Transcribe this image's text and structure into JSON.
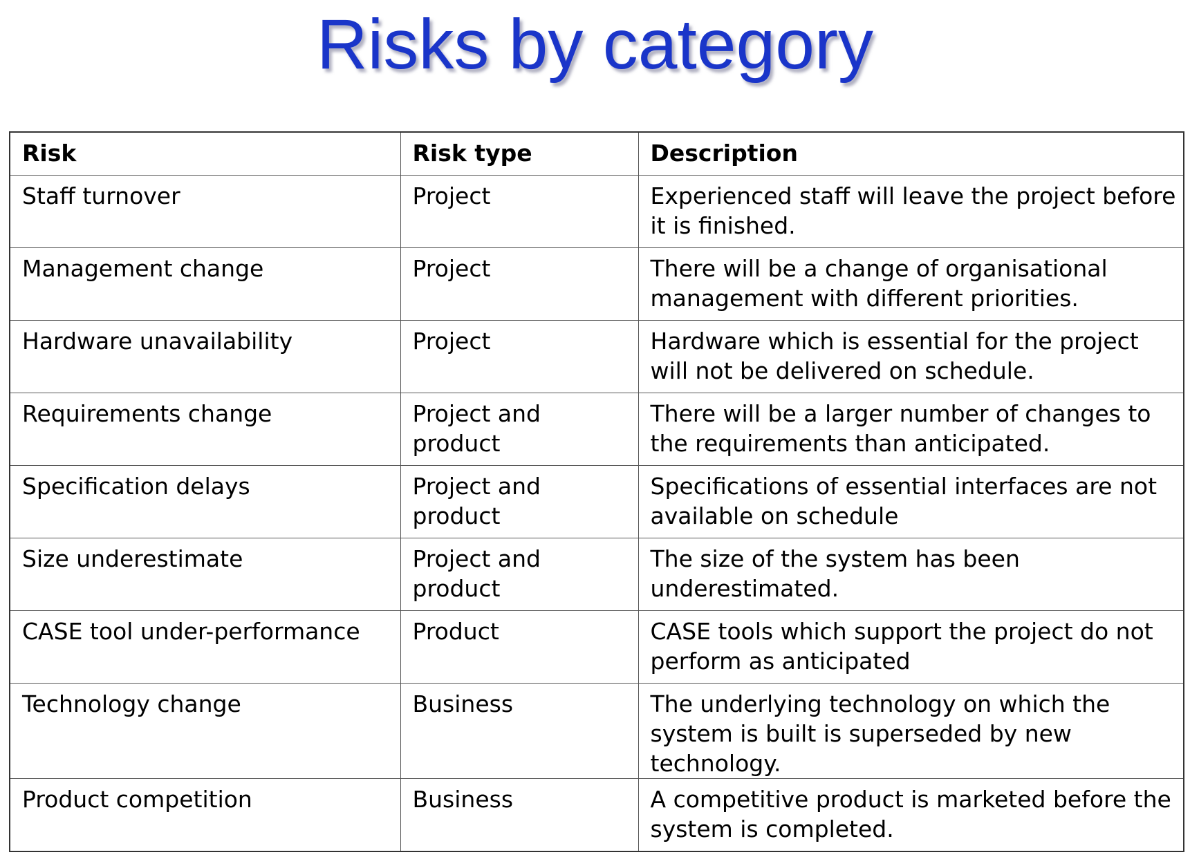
{
  "title": "Risks by category",
  "table": {
    "headers": [
      "Risk",
      "Risk type",
      "Description"
    ],
    "rows": [
      {
        "risk": "Staff turnover",
        "type": "Project",
        "description": "Experienced staff will leave the project before it is finished."
      },
      {
        "risk": "Management change",
        "type": "Project",
        "description": "There will be a change of organisational management with different priorities."
      },
      {
        "risk": "Hardware unavailability",
        "type": "Project",
        "description": "Hardware which is essential for the project will not be delivered on schedule."
      },
      {
        "risk": "Requirements change",
        "type": "Project and product",
        "description": "There will be a larger number of changes to the requirements than anticipated."
      },
      {
        "risk": "Specification delays",
        "type": "Project and product",
        "description": "Specifications of essential interfaces are not available on schedule"
      },
      {
        "risk": "Size underestimate",
        "type": "Project and product",
        "description": "The size of the system has been underestimated."
      },
      {
        "risk": "CASE tool under-performance",
        "type": "Product",
        "description": "CASE tools which support the project do not perform as anticipated"
      },
      {
        "risk": "Technology change",
        "type": "Business",
        "description": "The underlying technology on which the system is built is superseded by new technology."
      },
      {
        "risk": "Product competition",
        "type": "Business",
        "description": "A competitive product is marketed before the system is completed."
      }
    ]
  }
}
